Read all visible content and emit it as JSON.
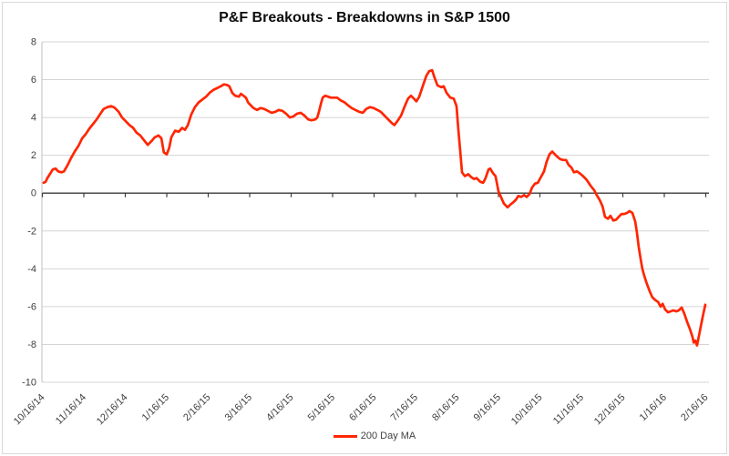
{
  "chart_data": {
    "type": "line",
    "title": "P&F Breakouts - Breakdowns in S&P 1500",
    "xlabel": "",
    "ylabel": "",
    "ylim": [
      -10,
      8
    ],
    "y_ticks": [
      8,
      6,
      4,
      2,
      0,
      -2,
      -4,
      -6,
      -8,
      -10
    ],
    "x_tick_labels": [
      "10/16/14",
      "11/16/14",
      "12/16/14",
      "1/16/15",
      "2/16/15",
      "3/16/15",
      "4/16/15",
      "5/16/15",
      "6/16/15",
      "7/16/15",
      "8/16/15",
      "9/16/15",
      "10/16/15",
      "11/16/15",
      "12/16/15",
      "1/16/16",
      "2/16/16"
    ],
    "x_unit": "months since 10/16/14",
    "x_range": [
      0,
      16
    ],
    "grid": "horizontal",
    "zero_axis_dark": true,
    "legend_position": "bottom-center",
    "colors": {
      "series": "#ff2600",
      "gridline": "#d4d4d4",
      "zero_axis": "#3b3b3b",
      "axis_line": "#bfbfbf",
      "tick_text": "#3f3f3f",
      "title_text": "#0d0d0d",
      "border": "#d9d9d9"
    },
    "series": [
      {
        "name": "200 Day MA",
        "color": "#ff2600",
        "points": [
          [
            0.03,
            0.55
          ],
          [
            0.08,
            0.6
          ],
          [
            0.12,
            0.8
          ],
          [
            0.18,
            1.0
          ],
          [
            0.25,
            1.25
          ],
          [
            0.32,
            1.3
          ],
          [
            0.38,
            1.15
          ],
          [
            0.46,
            1.1
          ],
          [
            0.52,
            1.15
          ],
          [
            0.6,
            1.45
          ],
          [
            0.69,
            1.85
          ],
          [
            0.78,
            2.2
          ],
          [
            0.87,
            2.5
          ],
          [
            0.96,
            2.9
          ],
          [
            1.04,
            3.1
          ],
          [
            1.13,
            3.4
          ],
          [
            1.22,
            3.65
          ],
          [
            1.31,
            3.9
          ],
          [
            1.4,
            4.2
          ],
          [
            1.48,
            4.45
          ],
          [
            1.57,
            4.55
          ],
          [
            1.66,
            4.6
          ],
          [
            1.72,
            4.55
          ],
          [
            1.75,
            4.5
          ],
          [
            1.84,
            4.3
          ],
          [
            1.92,
            4.0
          ],
          [
            2.01,
            3.8
          ],
          [
            2.1,
            3.6
          ],
          [
            2.19,
            3.45
          ],
          [
            2.27,
            3.2
          ],
          [
            2.36,
            3.05
          ],
          [
            2.45,
            2.8
          ],
          [
            2.54,
            2.55
          ],
          [
            2.63,
            2.75
          ],
          [
            2.71,
            2.95
          ],
          [
            2.8,
            3.05
          ],
          [
            2.87,
            2.9
          ],
          [
            2.93,
            2.15
          ],
          [
            3.0,
            2.05
          ],
          [
            3.06,
            2.4
          ],
          [
            3.11,
            2.95
          ],
          [
            3.2,
            3.3
          ],
          [
            3.29,
            3.25
          ],
          [
            3.37,
            3.45
          ],
          [
            3.44,
            3.35
          ],
          [
            3.51,
            3.6
          ],
          [
            3.59,
            4.15
          ],
          [
            3.68,
            4.55
          ],
          [
            3.77,
            4.8
          ],
          [
            3.86,
            4.95
          ],
          [
            3.95,
            5.1
          ],
          [
            4.03,
            5.3
          ],
          [
            4.12,
            5.45
          ],
          [
            4.21,
            5.55
          ],
          [
            4.3,
            5.65
          ],
          [
            4.38,
            5.75
          ],
          [
            4.45,
            5.72
          ],
          [
            4.51,
            5.65
          ],
          [
            4.58,
            5.3
          ],
          [
            4.65,
            5.15
          ],
          [
            4.74,
            5.1
          ],
          [
            4.79,
            5.25
          ],
          [
            4.85,
            5.15
          ],
          [
            4.91,
            5.05
          ],
          [
            4.96,
            4.8
          ],
          [
            5.0,
            4.7
          ],
          [
            5.09,
            4.5
          ],
          [
            5.18,
            4.4
          ],
          [
            5.26,
            4.5
          ],
          [
            5.35,
            4.45
          ],
          [
            5.44,
            4.35
          ],
          [
            5.53,
            4.25
          ],
          [
            5.62,
            4.3
          ],
          [
            5.7,
            4.4
          ],
          [
            5.79,
            4.35
          ],
          [
            5.88,
            4.2
          ],
          [
            5.97,
            4.0
          ],
          [
            6.05,
            4.05
          ],
          [
            6.14,
            4.2
          ],
          [
            6.23,
            4.25
          ],
          [
            6.32,
            4.1
          ],
          [
            6.41,
            3.9
          ],
          [
            6.49,
            3.85
          ],
          [
            6.58,
            3.9
          ],
          [
            6.63,
            4.0
          ],
          [
            6.67,
            4.3
          ],
          [
            6.72,
            4.75
          ],
          [
            6.76,
            5.05
          ],
          [
            6.82,
            5.15
          ],
          [
            6.89,
            5.1
          ],
          [
            6.96,
            5.05
          ],
          [
            7.02,
            5.05
          ],
          [
            7.11,
            5.05
          ],
          [
            7.2,
            4.9
          ],
          [
            7.29,
            4.8
          ],
          [
            7.37,
            4.65
          ],
          [
            7.46,
            4.5
          ],
          [
            7.55,
            4.4
          ],
          [
            7.64,
            4.3
          ],
          [
            7.73,
            4.25
          ],
          [
            7.81,
            4.45
          ],
          [
            7.9,
            4.55
          ],
          [
            7.99,
            4.5
          ],
          [
            8.08,
            4.4
          ],
          [
            8.16,
            4.3
          ],
          [
            8.25,
            4.1
          ],
          [
            8.34,
            3.9
          ],
          [
            8.43,
            3.7
          ],
          [
            8.49,
            3.6
          ],
          [
            8.56,
            3.8
          ],
          [
            8.65,
            4.1
          ],
          [
            8.74,
            4.6
          ],
          [
            8.82,
            5.0
          ],
          [
            8.89,
            5.15
          ],
          [
            8.96,
            5.0
          ],
          [
            9.02,
            4.85
          ],
          [
            9.09,
            5.1
          ],
          [
            9.18,
            5.7
          ],
          [
            9.26,
            6.2
          ],
          [
            9.33,
            6.45
          ],
          [
            9.4,
            6.5
          ],
          [
            9.46,
            6.1
          ],
          [
            9.53,
            5.7
          ],
          [
            9.62,
            5.6
          ],
          [
            9.68,
            5.65
          ],
          [
            9.75,
            5.3
          ],
          [
            9.84,
            5.05
          ],
          [
            9.92,
            5.0
          ],
          [
            9.99,
            4.6
          ],
          [
            10.03,
            3.4
          ],
          [
            10.08,
            2.2
          ],
          [
            10.12,
            1.1
          ],
          [
            10.19,
            0.9
          ],
          [
            10.27,
            1.0
          ],
          [
            10.34,
            0.85
          ],
          [
            10.41,
            0.75
          ],
          [
            10.47,
            0.8
          ],
          [
            10.56,
            0.6
          ],
          [
            10.63,
            0.55
          ],
          [
            10.69,
            0.8
          ],
          [
            10.76,
            1.25
          ],
          [
            10.8,
            1.3
          ],
          [
            10.87,
            1.05
          ],
          [
            10.93,
            0.9
          ],
          [
            11.0,
            0.1
          ],
          [
            11.07,
            -0.25
          ],
          [
            11.13,
            -0.55
          ],
          [
            11.22,
            -0.75
          ],
          [
            11.29,
            -0.6
          ],
          [
            11.35,
            -0.5
          ],
          [
            11.42,
            -0.35
          ],
          [
            11.48,
            -0.15
          ],
          [
            11.55,
            -0.2
          ],
          [
            11.62,
            -0.1
          ],
          [
            11.68,
            -0.2
          ],
          [
            11.75,
            -0.05
          ],
          [
            11.81,
            0.3
          ],
          [
            11.88,
            0.5
          ],
          [
            11.95,
            0.55
          ],
          [
            12.01,
            0.8
          ],
          [
            12.1,
            1.15
          ],
          [
            12.16,
            1.65
          ],
          [
            12.23,
            2.05
          ],
          [
            12.3,
            2.2
          ],
          [
            12.36,
            2.05
          ],
          [
            12.43,
            1.9
          ],
          [
            12.49,
            1.8
          ],
          [
            12.56,
            1.75
          ],
          [
            12.63,
            1.75
          ],
          [
            12.69,
            1.5
          ],
          [
            12.76,
            1.35
          ],
          [
            12.82,
            1.1
          ],
          [
            12.89,
            1.15
          ],
          [
            12.96,
            1.05
          ],
          [
            13.04,
            0.9
          ],
          [
            13.13,
            0.7
          ],
          [
            13.22,
            0.4
          ],
          [
            13.31,
            0.15
          ],
          [
            13.37,
            -0.1
          ],
          [
            13.44,
            -0.35
          ],
          [
            13.51,
            -0.7
          ],
          [
            13.57,
            -1.25
          ],
          [
            13.64,
            -1.35
          ],
          [
            13.7,
            -1.2
          ],
          [
            13.77,
            -1.45
          ],
          [
            13.84,
            -1.4
          ],
          [
            13.9,
            -1.25
          ],
          [
            13.97,
            -1.1
          ],
          [
            14.03,
            -1.1
          ],
          [
            14.1,
            -1.05
          ],
          [
            14.16,
            -0.95
          ],
          [
            14.23,
            -1.05
          ],
          [
            14.3,
            -1.5
          ],
          [
            14.34,
            -2.1
          ],
          [
            14.38,
            -2.8
          ],
          [
            14.43,
            -3.5
          ],
          [
            14.47,
            -4.0
          ],
          [
            14.52,
            -4.4
          ],
          [
            14.58,
            -4.8
          ],
          [
            14.65,
            -5.2
          ],
          [
            14.71,
            -5.5
          ],
          [
            14.78,
            -5.65
          ],
          [
            14.85,
            -5.75
          ],
          [
            14.91,
            -6.0
          ],
          [
            14.96,
            -5.85
          ],
          [
            15.02,
            -6.15
          ],
          [
            15.09,
            -6.3
          ],
          [
            15.15,
            -6.25
          ],
          [
            15.22,
            -6.2
          ],
          [
            15.29,
            -6.25
          ],
          [
            15.35,
            -6.2
          ],
          [
            15.42,
            -6.05
          ],
          [
            15.48,
            -6.35
          ],
          [
            15.55,
            -6.8
          ],
          [
            15.62,
            -7.2
          ],
          [
            15.68,
            -7.6
          ],
          [
            15.71,
            -7.9
          ],
          [
            15.75,
            -7.8
          ],
          [
            15.79,
            -8.05
          ],
          [
            15.84,
            -7.5
          ],
          [
            15.88,
            -7.05
          ],
          [
            15.92,
            -6.6
          ],
          [
            15.95,
            -6.3
          ],
          [
            15.99,
            -5.9
          ]
        ]
      }
    ]
  }
}
